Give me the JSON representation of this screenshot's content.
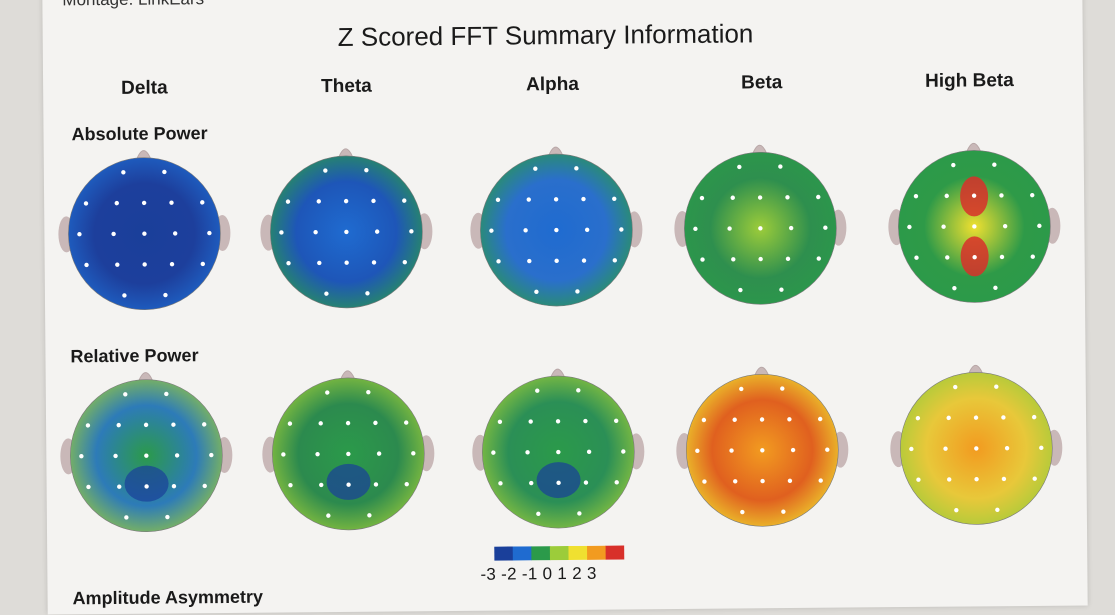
{
  "header": {
    "montage": "Montage: LinkEars",
    "title": "Z Scored FFT Summary Information"
  },
  "bands": [
    "Delta",
    "Theta",
    "Alpha",
    "Beta",
    "High Beta"
  ],
  "sections": {
    "absolute_power": "Absolute Power",
    "relative_power": "Relative Power",
    "amplitude_asymmetry": "Amplitude Asymmetry"
  },
  "legend": {
    "scale_text": "-3 -2 -1 0 1 2 3",
    "colors": [
      "#1a3f9a",
      "#1f6bd0",
      "#2b9a4a",
      "#9ccc3a",
      "#f0e030",
      "#f29b20",
      "#d8302a"
    ]
  },
  "maps": [
    {
      "section": "absolute_power",
      "band": "Delta",
      "base": "#1d3f9c",
      "z": -2.8
    },
    {
      "section": "absolute_power",
      "band": "Theta",
      "base": "#1e56b8",
      "z": -2.2
    },
    {
      "section": "absolute_power",
      "band": "Alpha",
      "base": "#2a6fcc",
      "z": -1.8
    },
    {
      "section": "absolute_power",
      "band": "Beta",
      "base": "#2e8f4e",
      "z": 0.2
    },
    {
      "section": "absolute_power",
      "band": "High Beta",
      "base": "#2e9a48",
      "z": 0.6
    },
    {
      "section": "relative_power",
      "band": "Delta",
      "base": "#2d7bb8",
      "z": -1.0
    },
    {
      "section": "relative_power",
      "band": "Theta",
      "base": "#2c8a4e",
      "z": -0.6
    },
    {
      "section": "relative_power",
      "band": "Alpha",
      "base": "#2b8f56",
      "z": -0.8
    },
    {
      "section": "relative_power",
      "band": "Beta",
      "base": "#e0601f",
      "z": 2.4
    },
    {
      "section": "relative_power",
      "band": "High Beta",
      "base": "#e8c83a",
      "z": 2.0
    }
  ]
}
